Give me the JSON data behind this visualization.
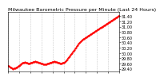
{
  "title": "Milwaukee Barometric Pressure per Minute (Last 24 Hours)",
  "background_color": "#ffffff",
  "plot_bg_color": "#ffffff",
  "grid_color": "#bbbbbb",
  "line_color": "#ff0000",
  "y_values": [
    29.52,
    29.5,
    29.48,
    29.46,
    29.44,
    29.42,
    29.4,
    29.41,
    29.42,
    29.43,
    29.44,
    29.46,
    29.48,
    29.5,
    29.52,
    29.55,
    29.58,
    29.6,
    29.62,
    29.63,
    29.64,
    29.65,
    29.64,
    29.63,
    29.62,
    29.61,
    29.6,
    29.61,
    29.62,
    29.63,
    29.64,
    29.65,
    29.66,
    29.67,
    29.68,
    29.67,
    29.66,
    29.65,
    29.64,
    29.63,
    29.62,
    29.61,
    29.6,
    29.59,
    29.58,
    29.57,
    29.56,
    29.57,
    29.58,
    29.59,
    29.6,
    29.61,
    29.62,
    29.63,
    29.64,
    29.65,
    29.66,
    29.67,
    29.68,
    29.67,
    29.66,
    29.65,
    29.64,
    29.63,
    29.62,
    29.61,
    29.6,
    29.61,
    29.62,
    29.63,
    29.64,
    29.65,
    29.68,
    29.72,
    29.76,
    29.8,
    29.84,
    29.88,
    29.92,
    29.96,
    30.0,
    30.04,
    30.08,
    30.12,
    30.16,
    30.2,
    30.25,
    30.3,
    30.35,
    30.38,
    30.41,
    30.44,
    30.47,
    30.5,
    30.52,
    30.54,
    30.56,
    30.58,
    30.6,
    30.62,
    30.64,
    30.66,
    30.68,
    30.7,
    30.72,
    30.74,
    30.76,
    30.78,
    30.8,
    30.82,
    30.84,
    30.86,
    30.88,
    30.9,
    30.92,
    30.94,
    30.96,
    30.98,
    31.0,
    31.02,
    31.04,
    31.06,
    31.08,
    31.1,
    31.12,
    31.14,
    31.16,
    31.18,
    31.2,
    31.22,
    31.24,
    31.26,
    31.28,
    31.3,
    31.32,
    31.34,
    31.36,
    31.38,
    31.4,
    31.42
  ],
  "ylim_min": 29.3,
  "ylim_max": 31.55,
  "ytick_min": 29.4,
  "ytick_max": 31.5,
  "ytick_step": 0.2,
  "num_vgrid": 11,
  "title_fontsize": 4.5,
  "tick_fontsize": 3.5,
  "marker_size": 1.2,
  "line_width": 0.6
}
